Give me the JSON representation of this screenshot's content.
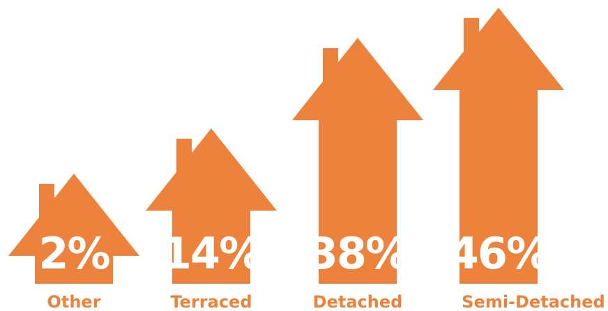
{
  "chart_data": {
    "type": "bar",
    "categories": [
      "Other",
      "Terraced",
      "Detached",
      "Semi-Detached"
    ],
    "values": [
      2,
      14,
      38,
      46
    ],
    "value_labels": [
      "2%",
      "14%",
      "38%",
      "46%"
    ],
    "unit": "%",
    "title": "",
    "xlabel": "",
    "ylabel": "",
    "mark_shape": "house-icon",
    "grid": false,
    "colors": {
      "bar": "#EC823B",
      "value_text": "#ffffff",
      "category_text": "#EC823B"
    }
  }
}
